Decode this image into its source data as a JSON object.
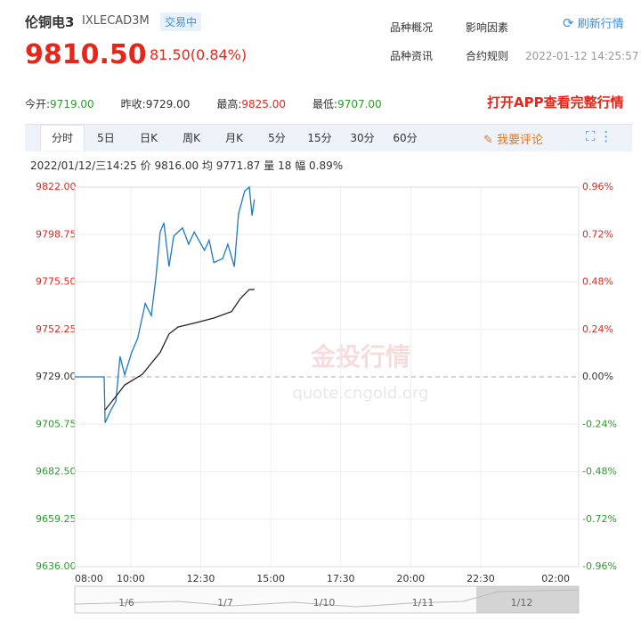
{
  "header": {
    "name": "伦铜电3",
    "code": "IXLECAD3M",
    "status": "交易中",
    "links": [
      "品种概况",
      "影响因素",
      "品种资讯",
      "合约规则"
    ],
    "refresh": "刷新行情",
    "price": "9810.50",
    "change": "81.50(0.84%)",
    "time": "2022-01-12 14:25:57"
  },
  "stats": [
    {
      "label": "今开:",
      "value": "9719.00"
    },
    {
      "label": "昨收:",
      "value": "9729.00"
    },
    {
      "label": "最高:",
      "value": "9825.00"
    },
    {
      "label": "最低:",
      "value": "9707.00"
    }
  ],
  "app_link": "打开APP查看完整行情",
  "tabs": [
    "分时",
    "5日",
    "日K",
    "周K",
    "月K",
    "5分",
    "15分",
    "30分",
    "60分"
  ],
  "comment": "我要评论",
  "info": {
    "date": "2022/01/12/三14:25",
    "price_label": "价",
    "price": "9816.00",
    "avg_label": "均",
    "avg": "9771.87",
    "vol_label": "量",
    "vol": "18",
    "amp_label": "幅",
    "amp": "0.89%"
  },
  "watermark": {
    "brand": "金投行情",
    "url": "quote.cngold.org"
  },
  "navigator": {
    "labels": [
      "1/6",
      "1/7",
      "1/10",
      "1/11",
      "1/12"
    ]
  },
  "chart_data": {
    "type": "line",
    "xlim": [
      "08:00",
      "02:00"
    ],
    "xticks": [
      "08:00",
      "10:00",
      "12:30",
      "15:00",
      "17:30",
      "20:00",
      "22:30",
      "02:00"
    ],
    "ylim": [
      9636,
      9822
    ],
    "yticks": [
      {
        "value": 9636,
        "label": "9636.00"
      },
      {
        "value": 9659.25,
        "label": "9659.25"
      },
      {
        "value": 9682.5,
        "label": "9682.50"
      },
      {
        "value": 9705.75,
        "label": "9705.75"
      },
      {
        "value": 9729,
        "label": "9729.00"
      },
      {
        "value": 9752.25,
        "label": "9752.25"
      },
      {
        "value": 9775.5,
        "label": "9775.50"
      },
      {
        "value": 9798.75,
        "label": "9798.75"
      },
      {
        "value": 9822,
        "label": "9822.00"
      }
    ],
    "y2lim": [
      -0.96,
      0.96
    ],
    "y2ticks": [
      {
        "value": -0.96,
        "label": "-0.96%"
      },
      {
        "value": -0.72,
        "label": "-0.72%"
      },
      {
        "value": -0.48,
        "label": "-0.48%"
      },
      {
        "value": -0.24,
        "label": "-0.24%"
      },
      {
        "value": 0,
        "label": "0.00%"
      },
      {
        "value": 0.24,
        "label": "0.24%"
      },
      {
        "value": 0.48,
        "label": "0.48%"
      },
      {
        "value": 0.72,
        "label": "0.72%"
      },
      {
        "value": 0.96,
        "label": "0.96%"
      }
    ],
    "series": [
      {
        "name": "价",
        "color": "#1f78c1",
        "x": [
          "08:00",
          "09:03",
          "09:05",
          "09:18",
          "09:28",
          "09:37",
          "09:47",
          "10:02",
          "10:15",
          "10:31",
          "10:44",
          "10:54",
          "11:03",
          "11:11",
          "11:22",
          "11:32",
          "11:51",
          "12:04",
          "12:16",
          "12:38",
          "12:48",
          "12:58",
          "13:17",
          "13:28",
          "13:42",
          "13:51",
          "14:04",
          "14:14",
          "14:20",
          "14:25"
        ],
        "values": [
          9729,
          9729,
          9706.5,
          9713,
          9717,
          9739,
          9730,
          9741,
          9748,
          9765,
          9759,
          9778,
          9800,
          9804.5,
          9783,
          9798,
          9802,
          9794,
          9800,
          9791,
          9796,
          9785,
          9787,
          9794,
          9783,
          9809,
          9820,
          9822,
          9808,
          9816
        ]
      },
      {
        "name": "均",
        "color": "#222222",
        "x": [
          "09:05",
          "09:28",
          "09:47",
          "10:25",
          "11:03",
          "11:22",
          "11:41",
          "12:20",
          "12:58",
          "13:36",
          "13:55",
          "14:14",
          "14:25"
        ],
        "values": [
          9712.8,
          9719.4,
          9725,
          9730.3,
          9741,
          9750,
          9753.4,
          9755.6,
          9757.8,
          9761,
          9767.4,
          9771.8,
          9771.87
        ]
      }
    ]
  }
}
